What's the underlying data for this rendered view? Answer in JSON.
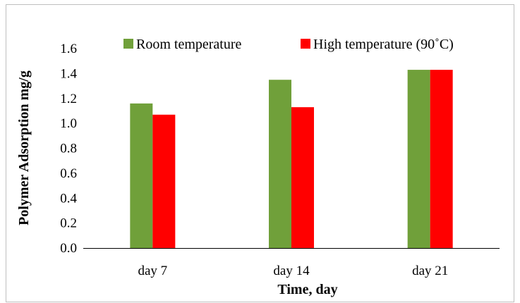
{
  "chart_data": {
    "type": "bar",
    "categories": [
      "day 7",
      "day 14",
      "day 21"
    ],
    "series": [
      {
        "name": "Room temperature",
        "values": [
          1.16,
          1.35,
          1.43
        ],
        "color": "#70a03a"
      },
      {
        "name": "High temperature (90˚C)",
        "values": [
          1.07,
          1.13,
          1.43
        ],
        "color": "#ff0000"
      }
    ],
    "xlabel": "Time, day",
    "ylabel": "Polymer Adsorption mg/g",
    "ylim": [
      0,
      1.6
    ],
    "yticks": [
      "0.0",
      "0.2",
      "0.4",
      "0.6",
      "0.8",
      "1.0",
      "1.2",
      "1.4",
      "1.6"
    ],
    "legend_position": "top",
    "grid": false
  }
}
